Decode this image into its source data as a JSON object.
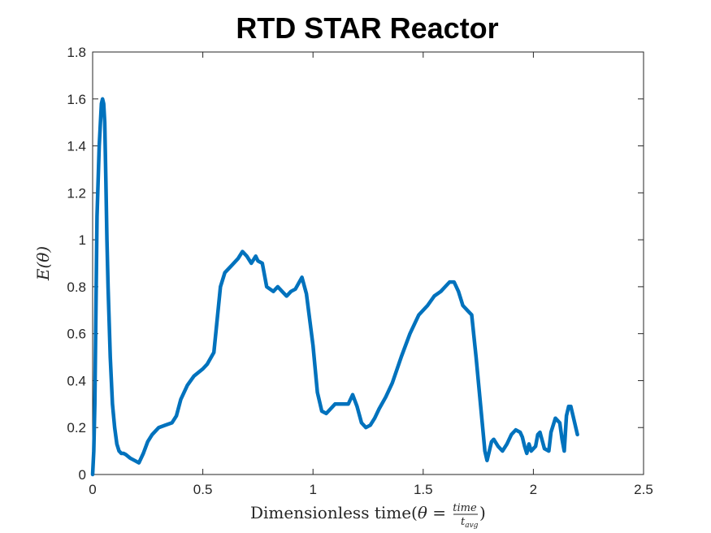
{
  "chart_data": {
    "type": "line",
    "title": "RTD STAR Reactor",
    "xlabel": "Dimensionless time(θ = time/t_avg)",
    "xlabel_parts": {
      "prefix": "Dimensionless time(",
      "theta_eq": "θ = ",
      "numerator": "time",
      "denominator": "t",
      "denominator_sub": "avg",
      "suffix": ")"
    },
    "ylabel": "E(θ)",
    "xlim": [
      0,
      2.5
    ],
    "ylim": [
      0,
      1.8
    ],
    "xticks": [
      0,
      0.5,
      1,
      1.5,
      2,
      2.5
    ],
    "xtick_labels": [
      "0",
      "0.5",
      "1",
      "1.5",
      "2",
      "2.5"
    ],
    "yticks": [
      0,
      0.2,
      0.4,
      0.6,
      0.8,
      1,
      1.2,
      1.4,
      1.6,
      1.8
    ],
    "ytick_labels": [
      "0",
      "0.2",
      "0.4",
      "0.6",
      "0.8",
      "1",
      "1.2",
      "1.4",
      "1.6",
      "1.8"
    ],
    "grid": false,
    "line_color": "#0072BD",
    "series": [
      {
        "x": [
          0,
          0.005,
          0.01,
          0.02,
          0.03,
          0.04,
          0.045,
          0.05,
          0.055,
          0.06,
          0.065,
          0.07,
          0.08,
          0.09,
          0.1,
          0.11,
          0.12,
          0.13,
          0.14,
          0.15,
          0.17,
          0.19,
          0.21,
          0.23,
          0.25,
          0.27,
          0.3,
          0.33,
          0.36,
          0.38,
          0.4,
          0.43,
          0.46,
          0.5,
          0.52,
          0.55,
          0.58,
          0.6,
          0.63,
          0.66,
          0.68,
          0.7,
          0.72,
          0.74,
          0.75,
          0.77,
          0.79,
          0.82,
          0.84,
          0.86,
          0.88,
          0.9,
          0.92,
          0.95,
          0.97,
          1.0,
          1.02,
          1.04,
          1.06,
          1.08,
          1.1,
          1.13,
          1.16,
          1.18,
          1.2,
          1.22,
          1.24,
          1.26,
          1.28,
          1.3,
          1.33,
          1.36,
          1.4,
          1.44,
          1.48,
          1.52,
          1.55,
          1.58,
          1.6,
          1.62,
          1.64,
          1.66,
          1.68,
          1.7,
          1.72,
          1.74,
          1.76,
          1.78,
          1.79,
          1.8,
          1.81,
          1.82,
          1.84,
          1.86,
          1.88,
          1.9,
          1.92,
          1.94,
          1.95,
          1.96,
          1.97,
          1.98,
          1.99,
          2.0,
          2.01,
          2.02,
          2.03,
          2.05,
          2.07,
          2.08,
          2.1,
          2.12,
          2.13,
          2.14,
          2.15,
          2.16,
          2.17,
          2.19,
          2.2
        ],
        "y": [
          0.0,
          0.1,
          0.3,
          1.1,
          1.4,
          1.58,
          1.6,
          1.58,
          1.5,
          1.25,
          1.0,
          0.8,
          0.5,
          0.3,
          0.2,
          0.13,
          0.1,
          0.09,
          0.09,
          0.085,
          0.07,
          0.06,
          0.05,
          0.09,
          0.14,
          0.17,
          0.2,
          0.21,
          0.22,
          0.25,
          0.32,
          0.38,
          0.42,
          0.45,
          0.47,
          0.52,
          0.8,
          0.86,
          0.89,
          0.92,
          0.95,
          0.93,
          0.9,
          0.93,
          0.91,
          0.9,
          0.8,
          0.78,
          0.8,
          0.78,
          0.76,
          0.78,
          0.79,
          0.84,
          0.77,
          0.55,
          0.35,
          0.27,
          0.26,
          0.28,
          0.3,
          0.3,
          0.3,
          0.34,
          0.29,
          0.22,
          0.2,
          0.21,
          0.24,
          0.28,
          0.33,
          0.39,
          0.5,
          0.6,
          0.68,
          0.72,
          0.76,
          0.78,
          0.8,
          0.82,
          0.82,
          0.78,
          0.72,
          0.7,
          0.68,
          0.5,
          0.3,
          0.1,
          0.06,
          0.1,
          0.14,
          0.15,
          0.12,
          0.1,
          0.13,
          0.17,
          0.19,
          0.18,
          0.16,
          0.12,
          0.09,
          0.13,
          0.1,
          0.11,
          0.12,
          0.17,
          0.18,
          0.11,
          0.1,
          0.18,
          0.24,
          0.22,
          0.15,
          0.1,
          0.25,
          0.29,
          0.29,
          0.21,
          0.17
        ]
      }
    ]
  }
}
